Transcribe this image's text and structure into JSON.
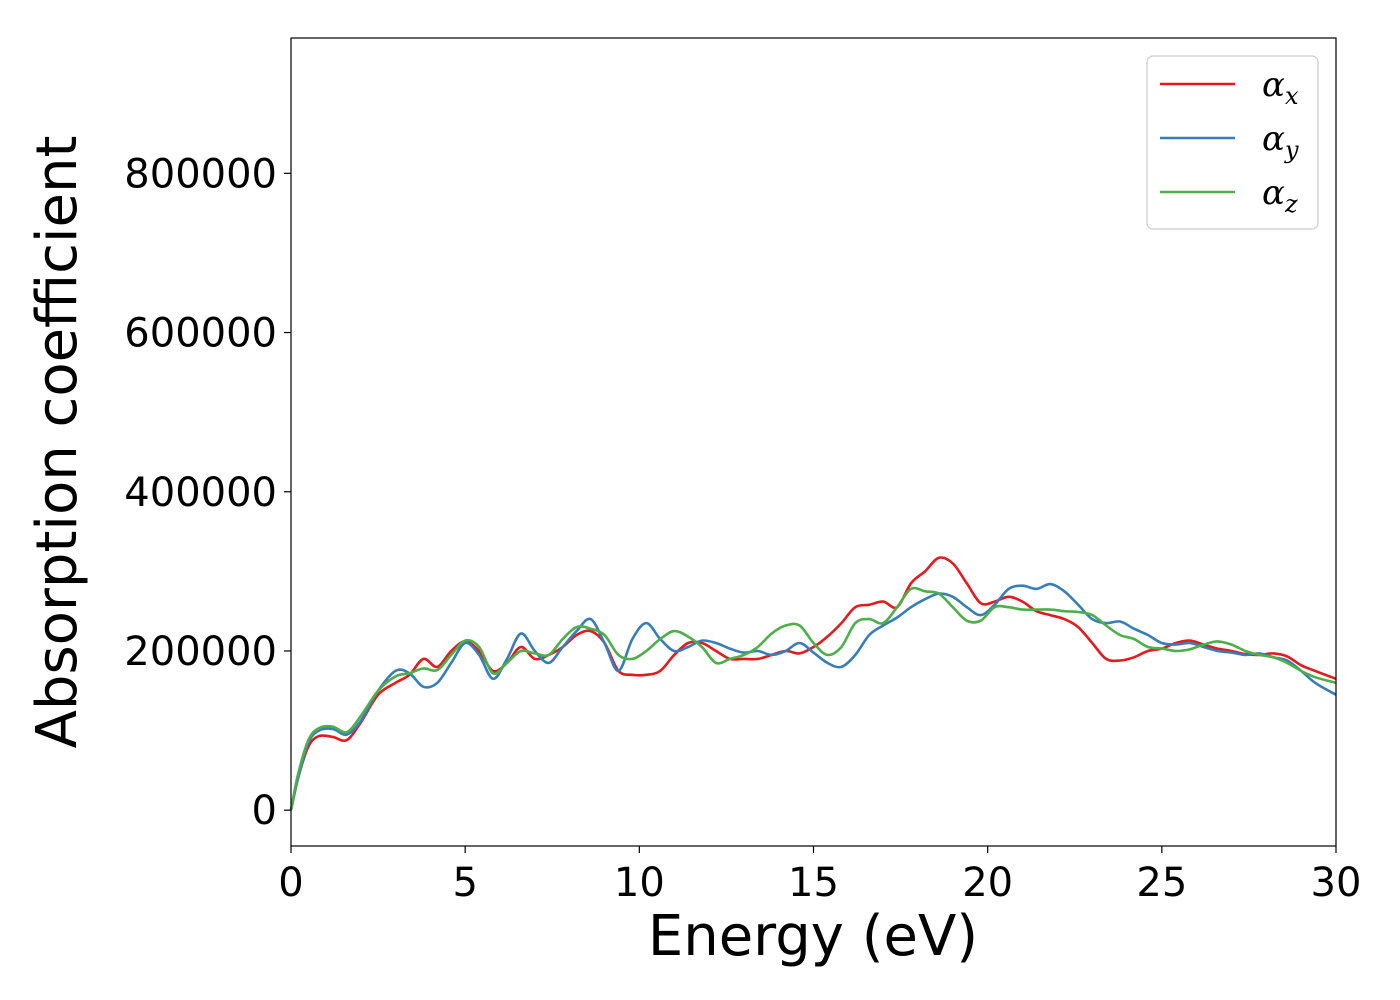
{
  "chart_data": {
    "type": "line",
    "title": "",
    "xlabel": "Energy (eV)",
    "ylabel": "Absorption coefficient",
    "xlim": [
      0,
      30
    ],
    "ylim": [
      -45000,
      970000
    ],
    "xticks": [
      0,
      5,
      10,
      15,
      20,
      25,
      30
    ],
    "yticks": [
      0,
      200000,
      400000,
      600000,
      800000
    ],
    "xtick_labels": [
      "0",
      "5",
      "10",
      "15",
      "20",
      "25",
      "30"
    ],
    "ytick_labels": [
      "0",
      "200000",
      "400000",
      "600000",
      "800000"
    ],
    "grid": false,
    "legend_position": "top-right",
    "series": [
      {
        "name": "αx",
        "base": "α",
        "sub": "x",
        "color": "#e41a1c",
        "x": [
          0,
          0.2,
          0.5,
          0.8,
          1.2,
          1.6,
          2.0,
          2.5,
          3.0,
          3.4,
          3.8,
          4.2,
          4.6,
          5.0,
          5.4,
          5.8,
          6.2,
          6.6,
          7.0,
          7.4,
          7.8,
          8.2,
          8.6,
          9.0,
          9.4,
          9.8,
          10.2,
          10.6,
          11.0,
          11.4,
          11.8,
          12.2,
          12.6,
          13.0,
          13.4,
          13.8,
          14.2,
          14.6,
          15.0,
          15.4,
          15.8,
          16.2,
          16.6,
          17.0,
          17.4,
          17.8,
          18.2,
          18.6,
          19.0,
          19.4,
          19.8,
          20.2,
          20.6,
          21.0,
          21.4,
          21.8,
          22.2,
          22.6,
          23.0,
          23.4,
          23.8,
          24.2,
          24.6,
          25.0,
          25.4,
          25.8,
          26.2,
          26.6,
          27.0,
          27.4,
          27.8,
          28.2,
          28.6,
          29.0,
          29.4,
          30.0
        ],
        "y": [
          0,
          40000,
          80000,
          93000,
          92000,
          88000,
          110000,
          145000,
          160000,
          170000,
          190000,
          180000,
          200000,
          212000,
          200000,
          175000,
          185000,
          205000,
          190000,
          195000,
          205000,
          220000,
          225000,
          210000,
          175000,
          170000,
          170000,
          175000,
          195000,
          210000,
          210000,
          200000,
          190000,
          190000,
          190000,
          195000,
          200000,
          197000,
          205000,
          218000,
          235000,
          255000,
          258000,
          262000,
          255000,
          285000,
          300000,
          317000,
          310000,
          285000,
          260000,
          262000,
          268000,
          262000,
          250000,
          245000,
          240000,
          230000,
          210000,
          190000,
          188000,
          192000,
          200000,
          203000,
          210000,
          213000,
          208000,
          203000,
          200000,
          196000,
          195000,
          197000,
          193000,
          182000,
          175000,
          165000
        ]
      },
      {
        "name": "αy",
        "base": "α",
        "sub": "y",
        "color": "#377eb8",
        "x": [
          0,
          0.2,
          0.5,
          0.8,
          1.2,
          1.6,
          2.0,
          2.5,
          3.0,
          3.4,
          3.8,
          4.2,
          4.6,
          5.0,
          5.4,
          5.8,
          6.2,
          6.6,
          7.0,
          7.4,
          7.8,
          8.2,
          8.6,
          9.0,
          9.4,
          9.8,
          10.2,
          10.6,
          11.0,
          11.4,
          11.8,
          12.2,
          12.6,
          13.0,
          13.4,
          13.8,
          14.2,
          14.6,
          15.0,
          15.4,
          15.8,
          16.2,
          16.6,
          17.0,
          17.4,
          17.8,
          18.2,
          18.6,
          19.0,
          19.4,
          19.8,
          20.2,
          20.6,
          21.0,
          21.4,
          21.8,
          22.2,
          22.6,
          23.0,
          23.4,
          23.8,
          24.2,
          24.6,
          25.0,
          25.4,
          25.8,
          26.2,
          26.6,
          27.0,
          27.4,
          27.8,
          28.2,
          28.6,
          29.0,
          29.4,
          30.0
        ],
        "y": [
          0,
          40000,
          85000,
          100000,
          102000,
          95000,
          112000,
          150000,
          175000,
          172000,
          155000,
          160000,
          185000,
          210000,
          195000,
          165000,
          190000,
          222000,
          200000,
          185000,
          205000,
          225000,
          240000,
          210000,
          175000,
          215000,
          235000,
          215000,
          200000,
          205000,
          213000,
          210000,
          203000,
          198000,
          200000,
          195000,
          200000,
          210000,
          198000,
          185000,
          180000,
          195000,
          220000,
          232000,
          242000,
          255000,
          265000,
          272000,
          268000,
          255000,
          245000,
          258000,
          278000,
          282000,
          278000,
          284000,
          275000,
          258000,
          240000,
          235000,
          237000,
          228000,
          220000,
          210000,
          208000,
          210000,
          205000,
          200000,
          198000,
          195000,
          197000,
          192000,
          188000,
          175000,
          160000,
          145000
        ]
      },
      {
        "name": "αz",
        "base": "α",
        "sub": "z",
        "color": "#4daf4a",
        "x": [
          0,
          0.2,
          0.5,
          0.8,
          1.2,
          1.6,
          2.0,
          2.5,
          3.0,
          3.4,
          3.8,
          4.2,
          4.6,
          5.0,
          5.4,
          5.8,
          6.2,
          6.6,
          7.0,
          7.4,
          7.8,
          8.2,
          8.6,
          9.0,
          9.4,
          9.8,
          10.2,
          10.6,
          11.0,
          11.4,
          11.8,
          12.2,
          12.6,
          13.0,
          13.4,
          13.8,
          14.2,
          14.6,
          15.0,
          15.4,
          15.8,
          16.2,
          16.6,
          17.0,
          17.4,
          17.8,
          18.2,
          18.6,
          19.0,
          19.4,
          19.8,
          20.2,
          20.6,
          21.0,
          21.4,
          21.8,
          22.2,
          22.6,
          23.0,
          23.4,
          23.8,
          24.2,
          24.6,
          25.0,
          25.4,
          25.8,
          26.2,
          26.6,
          27.0,
          27.4,
          27.8,
          28.2,
          28.6,
          29.0,
          29.4,
          30.0
        ],
        "y": [
          0,
          45000,
          88000,
          103000,
          105000,
          98000,
          118000,
          150000,
          168000,
          172000,
          178000,
          176000,
          195000,
          213000,
          205000,
          172000,
          185000,
          200000,
          197000,
          195000,
          215000,
          230000,
          228000,
          220000,
          195000,
          190000,
          200000,
          215000,
          225000,
          218000,
          205000,
          185000,
          190000,
          195000,
          205000,
          222000,
          232000,
          232000,
          210000,
          195000,
          205000,
          235000,
          240000,
          235000,
          255000,
          278000,
          275000,
          272000,
          255000,
          238000,
          238000,
          255000,
          255000,
          252000,
          252000,
          252000,
          250000,
          249000,
          245000,
          232000,
          220000,
          215000,
          205000,
          203000,
          200000,
          202000,
          208000,
          212000,
          208000,
          200000,
          195000,
          192000,
          185000,
          175000,
          167000,
          160000
        ]
      }
    ]
  }
}
